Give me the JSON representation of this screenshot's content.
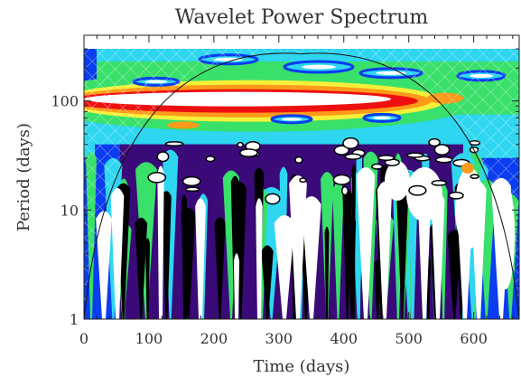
{
  "chart_data": {
    "type": "heatmap",
    "title": "Wavelet Power Spectrum",
    "xlabel": "Time (days)",
    "ylabel": "Period (days)",
    "xlim": [
      0,
      670
    ],
    "ylim": [
      1,
      400
    ],
    "yscale": "log",
    "x_ticks": [
      0,
      100,
      200,
      300,
      400,
      500,
      600
    ],
    "x_tick_labels": [
      "0",
      "100",
      "200",
      "300",
      "400",
      "500",
      "600"
    ],
    "y_ticks": [
      1,
      10,
      100
    ],
    "y_tick_labels": [
      "1",
      "10",
      "100"
    ],
    "colormap": [
      "#ffffff",
      "#000000",
      "#3a0a78",
      "#0a3cf0",
      "#2ed6f0",
      "#39e06a",
      "#f5f03a",
      "#ff9a1a",
      "#ee1010"
    ],
    "cone_of_influence": true,
    "cone_apex": {
      "time": 335,
      "period": 270
    }
  }
}
